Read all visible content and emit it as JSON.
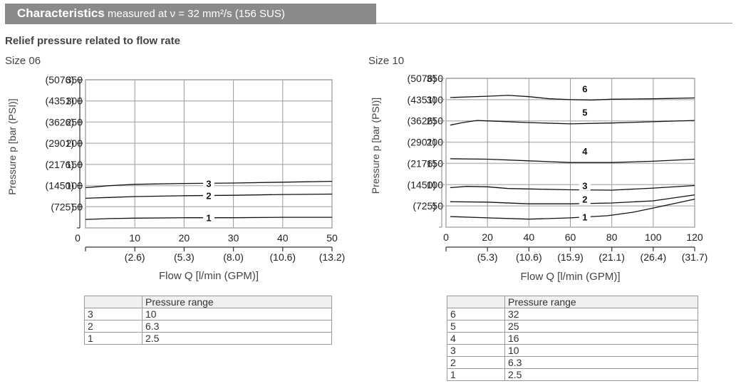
{
  "header": {
    "title": "Characteristics",
    "condition": "measured at ν = 32 mm²/s (156 SUS)"
  },
  "subtitle": "Relief pressure related to flow rate",
  "charts": [
    {
      "size_label": "Size 06"
    },
    {
      "size_label": "Size 10"
    }
  ],
  "chart_data": [
    {
      "type": "line",
      "title": "Size 06",
      "xlabel": "Flow Q [l/min (GPM)]",
      "ylabel": "Pressure p [bar (PSI)]",
      "xlim": [
        0,
        50
      ],
      "ylim": [
        0,
        350
      ],
      "x_ticks": [
        "0",
        "10",
        "20",
        "30",
        "40",
        "50"
      ],
      "x_ticks_secondary": [
        "(2.6)",
        "(5.3)",
        "(8.0)",
        "(10.6)",
        "(13.2)"
      ],
      "y_ticks": [
        "50",
        "100",
        "150",
        "200",
        "250",
        "300",
        "350"
      ],
      "y_ticks_secondary": [
        "(725)",
        "(1450)",
        "(2176)",
        "(2901)",
        "(3626)",
        "(4351)",
        "(5076)"
      ],
      "grid": true,
      "series": [
        {
          "name": "3",
          "x": [
            0,
            5,
            10,
            20,
            30,
            40,
            50
          ],
          "values": [
            95,
            100,
            103,
            105,
            106,
            108,
            110
          ]
        },
        {
          "name": "2",
          "x": [
            0,
            5,
            10,
            20,
            30,
            40,
            50
          ],
          "values": [
            70,
            72,
            74,
            76,
            77,
            79,
            80
          ]
        },
        {
          "name": "1",
          "x": [
            0,
            5,
            10,
            20,
            30,
            40,
            50
          ],
          "values": [
            20,
            22,
            23,
            24,
            24,
            25,
            25
          ]
        }
      ]
    },
    {
      "type": "line",
      "title": "Size 10",
      "xlabel": "Flow Q [l/min (GPM)]",
      "ylabel": "Pressure p [bar (PSI)]",
      "xlim": [
        0,
        120
      ],
      "ylim": [
        0,
        350
      ],
      "x_ticks": [
        "0",
        "20",
        "40",
        "60",
        "80",
        "100",
        "120"
      ],
      "x_ticks_secondary": [
        "(5.3)",
        "(10.6)",
        "(15.9)",
        "(21.1)",
        "(26.4)",
        "(31.7)"
      ],
      "y_ticks": [
        "50",
        "100",
        "150",
        "200",
        "250",
        "300",
        "350"
      ],
      "y_ticks_secondary": [
        "(725)",
        "(1450)",
        "(2176)",
        "(2901)",
        "(3626)",
        "(4351)",
        "(5076)"
      ],
      "grid": true,
      "series": [
        {
          "name": "6",
          "x": [
            2,
            20,
            30,
            40,
            50,
            60,
            70,
            80,
            100,
            120
          ],
          "values": [
            305,
            308,
            310,
            307,
            302,
            300,
            299,
            301,
            302,
            304
          ]
        },
        {
          "name": "5",
          "x": [
            2,
            8,
            15,
            20,
            40,
            60,
            80,
            100,
            120
          ],
          "values": [
            240,
            246,
            251,
            250,
            246,
            243,
            245,
            248,
            251
          ]
        },
        {
          "name": "4",
          "x": [
            2,
            20,
            40,
            60,
            80,
            100,
            120
          ],
          "values": [
            161,
            160,
            156,
            152,
            152,
            155,
            160
          ]
        },
        {
          "name": "3",
          "x": [
            2,
            10,
            20,
            30,
            40,
            60,
            80,
            100,
            120
          ],
          "values": [
            93,
            96,
            95,
            91,
            90,
            88,
            87,
            92,
            98
          ]
        },
        {
          "name": "2",
          "x": [
            2,
            20,
            40,
            60,
            80,
            100,
            120
          ],
          "values": [
            60,
            59,
            55,
            55,
            57,
            62,
            76
          ]
        },
        {
          "name": "1",
          "x": [
            2,
            20,
            40,
            60,
            78,
            90,
            100,
            120
          ],
          "values": [
            25,
            22,
            19,
            22,
            27,
            35,
            45,
            66
          ]
        }
      ]
    }
  ],
  "tables": [
    {
      "header": [
        "",
        "Pressure range"
      ],
      "rows": [
        [
          "3",
          "10"
        ],
        [
          "2",
          "6.3"
        ],
        [
          "1",
          "2.5"
        ]
      ]
    },
    {
      "header": [
        "",
        "Pressure range"
      ],
      "rows": [
        [
          "6",
          "32"
        ],
        [
          "5",
          "25"
        ],
        [
          "4",
          "16"
        ],
        [
          "3",
          "10"
        ],
        [
          "2",
          "6.3"
        ],
        [
          "1",
          "2.5"
        ]
      ]
    }
  ]
}
